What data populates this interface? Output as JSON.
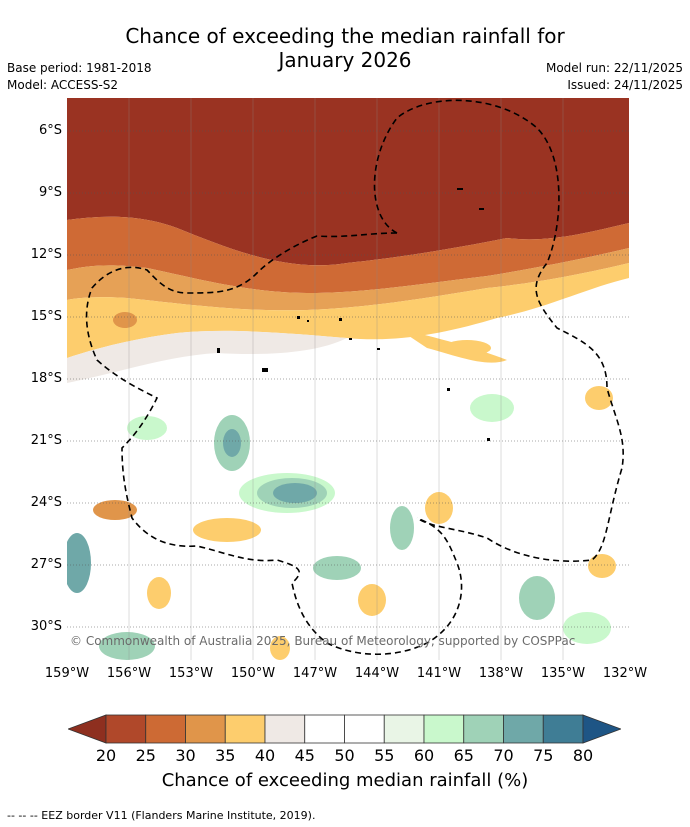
{
  "header": {
    "title_line1": "Chance of exceeding the median rainfall for",
    "title_line2": "January 2026",
    "base_period": "Base period: 1981-2018",
    "model": "Model: ACCESS-S2",
    "model_run": "Model run: 22/11/2025",
    "issued": "Issued: 24/11/2025"
  },
  "axes": {
    "lat_labels": [
      "6°S",
      "9°S",
      "12°S",
      "15°S",
      "18°S",
      "21°S",
      "24°S",
      "27°S",
      "30°S"
    ],
    "lon_labels": [
      "159°W",
      "156°W",
      "153°W",
      "150°W",
      "147°W",
      "144°W",
      "141°W",
      "138°W",
      "135°W",
      "132°W"
    ]
  },
  "map": {
    "copyright": "© Commonwealth of Australia 2025, Bureau of Meteorology, supported by COSPPac"
  },
  "colorbar": {
    "ticks": [
      "20",
      "25",
      "30",
      "35",
      "40",
      "45",
      "50",
      "55",
      "60",
      "65",
      "70",
      "75",
      "80"
    ],
    "colors": [
      "#8e2f1f",
      "#b0482a",
      "#cd6a34",
      "#e0954a",
      "#fdcd6d",
      "#efe9e5",
      "#ffffff",
      "#ffffff",
      "#e9f5e6",
      "#c9f8cc",
      "#9fd2b7",
      "#6fa8a8",
      "#3f7d95",
      "#1e5585"
    ],
    "title": "Chance of exceeding median rainfall (%)"
  },
  "footnote": "--  --  -- EEZ border V11 (Flanders Marine Institute, 2019)."
}
